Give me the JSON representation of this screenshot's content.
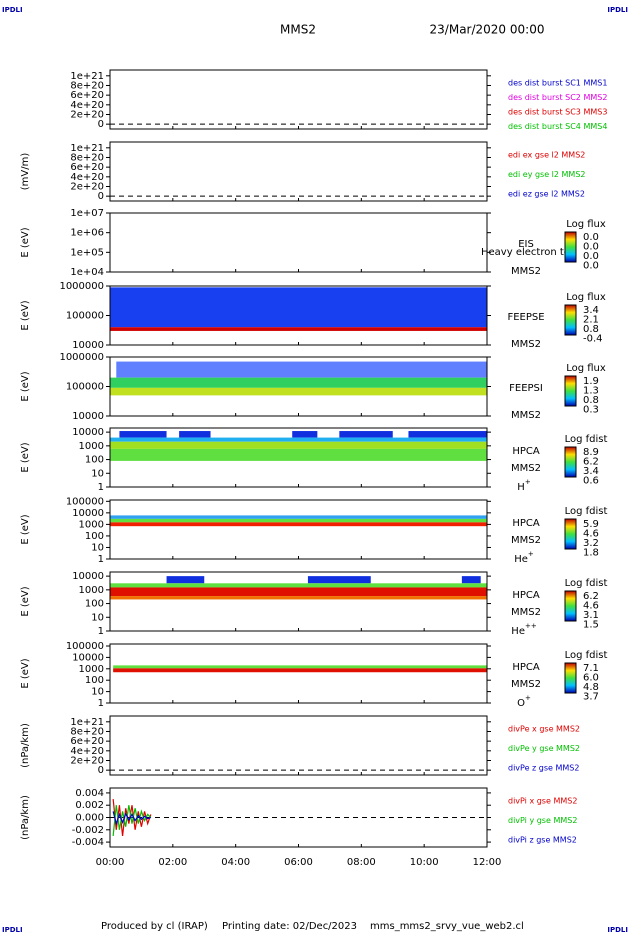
{
  "header": {
    "tag": "IPDLI",
    "mission": "MMS2",
    "date": "23/Mar/2020 00:00"
  },
  "footer": {
    "producer": "Produced by cl (IRAP)",
    "printing": "Printing date: 02/Dec/2023",
    "file": "mms_mms2_srvy_vue_web2.cl"
  },
  "time_axis": {
    "xlim": [
      0,
      12
    ],
    "xticks": [
      {
        "value": 0,
        "label": "00:00"
      },
      {
        "value": 2,
        "label": "02:00"
      },
      {
        "value": 4,
        "label": "04:00"
      },
      {
        "value": 6,
        "label": "06:00"
      },
      {
        "value": 8,
        "label": "08:00"
      },
      {
        "value": 10,
        "label": "10:00"
      },
      {
        "value": 12,
        "label": "12:00"
      }
    ]
  },
  "chart_data": [
    {
      "type": "line",
      "ylim": [
        -1e+20,
        1.12e+21
      ],
      "yticks": [
        0,
        {
          "value": 2e+20,
          "label": "2e+20"
        },
        {
          "value": 4e+20,
          "label": "4e+20"
        },
        {
          "value": 6e+20,
          "label": "6e+20"
        },
        {
          "value": 8e+20,
          "label": "8e+20"
        },
        {
          "value": 1e+21,
          "label": "1e+21"
        }
      ],
      "legend": [
        {
          "name": "des dist burst SC1 MMS1",
          "color": "#0000cc"
        },
        {
          "name": "des dist burst SC2 MMS2",
          "color": "#e000e0"
        },
        {
          "name": "des dist burst SC3 MMS3",
          "color": "#e00000"
        },
        {
          "name": "des dist burst SC4 MMS4",
          "color": "#00c000"
        }
      ]
    },
    {
      "type": "line",
      "ylabel": "(mV/m)",
      "ylim": [
        -1e+20,
        1.12e+21
      ],
      "yticks": [
        0,
        {
          "value": 2e+20,
          "label": "2e+20"
        },
        {
          "value": 4e+20,
          "label": "4e+20"
        },
        {
          "value": 6e+20,
          "label": "6e+20"
        },
        {
          "value": 8e+20,
          "label": "8e+20"
        },
        {
          "value": 1e+21,
          "label": "1e+21"
        }
      ],
      "legend": [
        {
          "name": "edi ex gse l2 MMS2",
          "color": "#e00000"
        },
        {
          "name": "edi ey gse l2 MMS2",
          "color": "#00c000"
        },
        {
          "name": "edi ez gse l2 MMS2",
          "color": "#0000cc"
        }
      ]
    },
    {
      "type": "spectrogram",
      "ylabel": "E (eV)",
      "log": true,
      "ylim": [
        10000,
        10000000
      ],
      "yticks": [
        {
          "value": 10000,
          "label": "1e+04"
        },
        {
          "value": 100000,
          "label": "1e+05"
        },
        {
          "value": 1000000,
          "label": "1e+06"
        },
        {
          "value": 10000000,
          "label": "1e+07"
        }
      ],
      "instrument": "EIS",
      "spacecraft": "MMS2",
      "note": "Heavy electron to",
      "colorbar": {
        "title": "Log flux",
        "labels": [
          "0.0",
          "0.0",
          "0.0",
          "0.0"
        ]
      },
      "bands": []
    },
    {
      "type": "spectrogram",
      "ylabel": "E (eV)",
      "log": true,
      "ylim": [
        10000,
        1000000
      ],
      "yticks": [
        10000,
        100000,
        1000000
      ],
      "instrument": "FEEPSE",
      "spacecraft": "MMS2",
      "colorbar": {
        "title": "Log flux",
        "labels": [
          "3.4",
          "2.1",
          "0.8",
          "-0.4"
        ]
      },
      "bands": [
        {
          "x": [
            0,
            12
          ],
          "y": [
            40000,
            900000
          ],
          "color": "#1840f0"
        },
        {
          "x": [
            0,
            12
          ],
          "y": [
            30000,
            40000
          ],
          "color": "#d00000"
        }
      ]
    },
    {
      "type": "spectrogram",
      "ylabel": "E (eV)",
      "log": true,
      "ylim": [
        10000,
        1000000
      ],
      "yticks": [
        10000,
        100000,
        1000000
      ],
      "instrument": "FEEPSI",
      "spacecraft": "MMS2",
      "colorbar": {
        "title": "Log flux",
        "labels": [
          "1.9",
          "1.3",
          "0.8",
          "0.3"
        ]
      },
      "bands": [
        {
          "x": [
            0.2,
            12
          ],
          "y": [
            200000,
            700000
          ],
          "color": "#6080ff"
        },
        {
          "x": [
            0,
            12
          ],
          "y": [
            90000,
            200000
          ],
          "color": "#30d060"
        },
        {
          "x": [
            0,
            12
          ],
          "y": [
            50000,
            90000
          ],
          "color": "#c0e020"
        }
      ]
    },
    {
      "type": "spectrogram",
      "ylabel": "E (eV)",
      "log": true,
      "ylim": [
        1,
        20000
      ],
      "yticks": [
        1,
        10,
        100,
        1000,
        10000
      ],
      "instrument": "HPCA",
      "spacecraft": "MMS2",
      "species": {
        "base": "H",
        "sup": "+"
      },
      "colorbar": {
        "title": "Log fdist",
        "labels": [
          "8.9",
          "6.2",
          "3.4",
          "0.6"
        ]
      },
      "bands": [
        {
          "x": [
            0.3,
            1.8
          ],
          "y": [
            4000,
            12000
          ],
          "color": "#1030e0"
        },
        {
          "x": [
            2.2,
            3.2
          ],
          "y": [
            4000,
            12000
          ],
          "color": "#1030e0"
        },
        {
          "x": [
            5.8,
            6.6
          ],
          "y": [
            4000,
            12000
          ],
          "color": "#1030e0"
        },
        {
          "x": [
            7.3,
            9.0
          ],
          "y": [
            4000,
            12000
          ],
          "color": "#1030e0"
        },
        {
          "x": [
            9.5,
            12
          ],
          "y": [
            4000,
            12000
          ],
          "color": "#1030e0"
        },
        {
          "x": [
            0,
            12
          ],
          "y": [
            2000,
            4000
          ],
          "color": "#20b0f0"
        },
        {
          "x": [
            0,
            12
          ],
          "y": [
            600,
            2000
          ],
          "color": "#a0e020"
        },
        {
          "x": [
            0,
            12
          ],
          "y": [
            80,
            600
          ],
          "color": "#60e040"
        }
      ]
    },
    {
      "type": "spectrogram",
      "ylabel": "E (eV)",
      "log": true,
      "ylim": [
        1,
        130000
      ],
      "yticks": [
        1,
        10,
        100,
        1000,
        10000,
        100000
      ],
      "instrument": "HPCA",
      "spacecraft": "MMS2",
      "species": {
        "base": "He",
        "sup": "+"
      },
      "colorbar": {
        "title": "Log fdist",
        "labels": [
          "5.9",
          "4.6",
          "3.2",
          "1.8"
        ]
      },
      "bands": [
        {
          "x": [
            0,
            12
          ],
          "y": [
            3000,
            6000
          ],
          "color": "#30a0f0"
        },
        {
          "x": [
            0,
            12
          ],
          "y": [
            1500,
            3000
          ],
          "color": "#60e040"
        },
        {
          "x": [
            0,
            12
          ],
          "y": [
            700,
            1500
          ],
          "color": "#f02000"
        }
      ]
    },
    {
      "type": "spectrogram",
      "ylabel": "E (eV)",
      "log": true,
      "ylim": [
        1,
        20000
      ],
      "yticks": [
        1,
        10,
        100,
        1000,
        10000
      ],
      "instrument": "HPCA",
      "spacecraft": "MMS2",
      "species": {
        "base": "He",
        "sup": "++"
      },
      "colorbar": {
        "title": "Log fdist",
        "labels": [
          "6.2",
          "4.6",
          "3.1",
          "1.5"
        ]
      },
      "bands": [
        {
          "x": [
            1.8,
            3.0
          ],
          "y": [
            3000,
            10000
          ],
          "color": "#1030e0"
        },
        {
          "x": [
            6.3,
            8.3
          ],
          "y": [
            3000,
            10000
          ],
          "color": "#1030e0"
        },
        {
          "x": [
            11.2,
            11.8
          ],
          "y": [
            3000,
            10000
          ],
          "color": "#1030e0"
        },
        {
          "x": [
            0,
            12
          ],
          "y": [
            1500,
            3000
          ],
          "color": "#60e040"
        },
        {
          "x": [
            0,
            12
          ],
          "y": [
            350,
            1500
          ],
          "color": "#e01000"
        },
        {
          "x": [
            0,
            12
          ],
          "y": [
            200,
            350
          ],
          "color": "#f07000"
        }
      ]
    },
    {
      "type": "spectrogram",
      "ylabel": "E (eV)",
      "log": true,
      "ylim": [
        1,
        150000
      ],
      "yticks": [
        1,
        10,
        100,
        1000,
        10000,
        100000
      ],
      "instrument": "HPCA",
      "spacecraft": "MMS2",
      "species": {
        "base": "O",
        "sup": "+"
      },
      "colorbar": {
        "title": "Log fdist",
        "labels": [
          "7.1",
          "6.0",
          "4.8",
          "3.7"
        ]
      },
      "bands": [
        {
          "x": [
            0.1,
            12
          ],
          "y": [
            1100,
            2000
          ],
          "color": "#60e040"
        },
        {
          "x": [
            0.1,
            12
          ],
          "y": [
            500,
            1100
          ],
          "color": "#e01000"
        }
      ]
    },
    {
      "type": "line",
      "ylabel": "(nPa/km)",
      "ylim": [
        -1e+20,
        1.12e+21
      ],
      "yticks": [
        0,
        {
          "value": 2e+20,
          "label": "2e+20"
        },
        {
          "value": 4e+20,
          "label": "4e+20"
        },
        {
          "value": 6e+20,
          "label": "6e+20"
        },
        {
          "value": 8e+20,
          "label": "8e+20"
        },
        {
          "value": 1e+21,
          "label": "1e+21"
        }
      ],
      "legend": [
        {
          "name": "divPe x gse MMS2",
          "color": "#e00000"
        },
        {
          "name": "divPe y gse MMS2",
          "color": "#00c000"
        },
        {
          "name": "divPe z gse MMS2",
          "color": "#0000cc"
        }
      ]
    },
    {
      "type": "line",
      "ylabel": "(nPa/km)",
      "ylim": [
        -0.0048,
        0.0048
      ],
      "yticks": [
        0.004,
        0.002,
        {
          "value": 0,
          "label": "0.000"
        },
        -0.002,
        -0.004
      ],
      "x": [
        0.1,
        0.2,
        0.3,
        0.4,
        0.5,
        0.6,
        0.7,
        0.8,
        0.9,
        1.0,
        1.1,
        1.2,
        1.3
      ],
      "series": [
        {
          "name": "divPi x gse MMS2",
          "color": "#e00000",
          "values": [
            0.003,
            -0.002,
            0.002,
            -0.003,
            0.0015,
            -0.001,
            0.002,
            -0.002,
            0.001,
            -0.0015,
            0.001,
            -0.001,
            0.0005
          ]
        },
        {
          "name": "divPi y gse MMS2",
          "color": "#00c000",
          "values": [
            -0.003,
            0.002,
            -0.002,
            0.001,
            -0.0015,
            0.002,
            -0.001,
            0.0015,
            -0.001,
            0.001,
            -0.0005,
            0.0005,
            0
          ]
        },
        {
          "name": "divPi z gse MMS2",
          "color": "#0000cc",
          "values": [
            0.001,
            -0.001,
            0.0005,
            -0.0008,
            0.0006,
            -0.0004,
            0.0005,
            -0.0005,
            0.0003,
            -0.0003,
            0.0002,
            -0.0002,
            0
          ]
        }
      ]
    }
  ]
}
